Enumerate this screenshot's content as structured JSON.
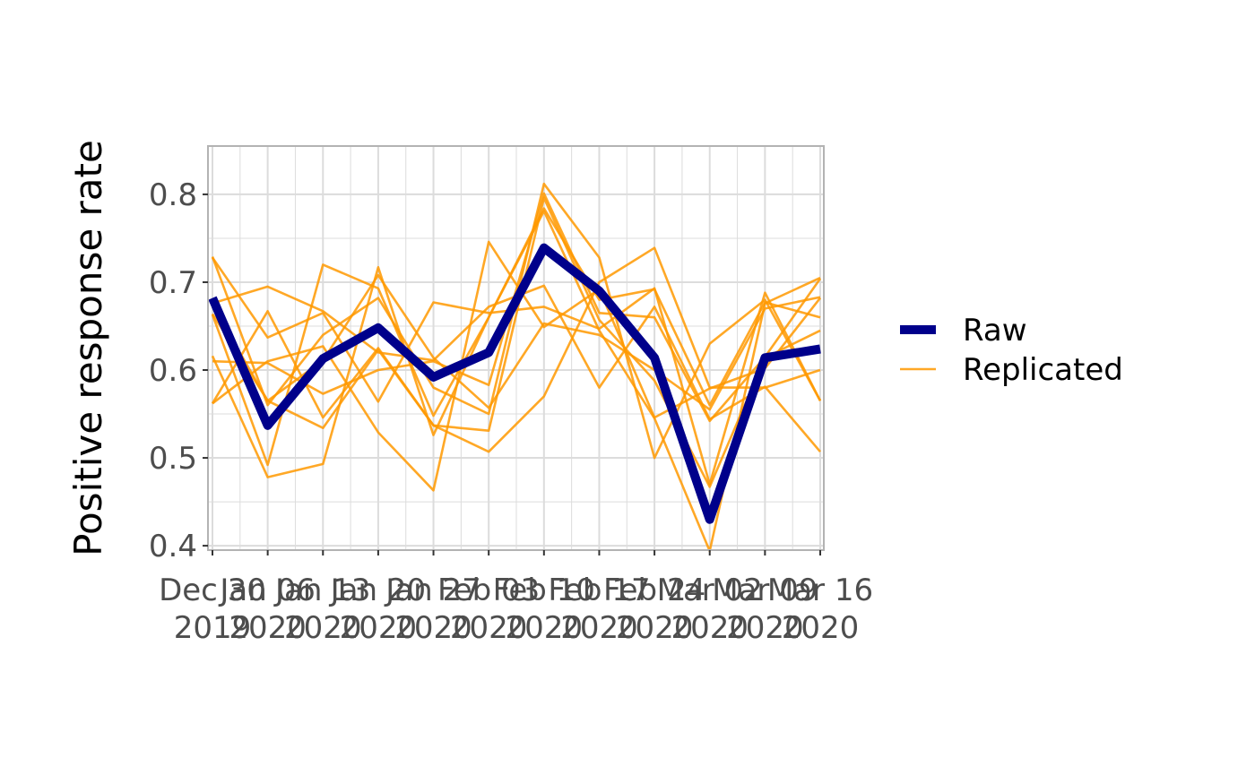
{
  "chart_data": {
    "type": "line",
    "title": "",
    "xlabel": "",
    "ylabel": "Positive response rate",
    "ylim": [
      0.395,
      0.855
    ],
    "yticks": [
      0.4,
      0.5,
      0.6,
      0.7,
      0.8
    ],
    "ytick_labels": [
      "0.4",
      "0.5",
      "0.6",
      "0.7",
      "0.8"
    ],
    "x": [
      "2019-12-30",
      "2020-01-06",
      "2020-01-13",
      "2020-01-20",
      "2020-01-27",
      "2020-02-03",
      "2020-02-10",
      "2020-02-17",
      "2020-02-24",
      "2020-03-02",
      "2020-03-09",
      "2020-03-16"
    ],
    "x_tick_labels": [
      [
        "Dec 30",
        "2019"
      ],
      [
        "Jan 06",
        "2020"
      ],
      [
        "Jan 13",
        "2020"
      ],
      [
        "Jan 20",
        "2020"
      ],
      [
        "Jan 27",
        "2020"
      ],
      [
        "Feb 03",
        "2020"
      ],
      [
        "Feb 10",
        "2020"
      ],
      [
        "Feb 17",
        "2020"
      ],
      [
        "Feb 24",
        "2020"
      ],
      [
        "Mar 02",
        "2020"
      ],
      [
        "Mar 09",
        "2020"
      ],
      [
        "Mar 16",
        "2020"
      ]
    ],
    "grid": true,
    "legend_position": "right",
    "colors": {
      "raw": "#00008b",
      "replicated": "#ff9900",
      "grid": "#dcdcdc",
      "panel_border": "#b3b3b3"
    },
    "series": [
      {
        "name": "Raw",
        "role": "raw",
        "values": [
          0.682,
          0.537,
          0.613,
          0.648,
          0.592,
          0.62,
          0.739,
          0.69,
          0.614,
          0.43,
          0.614,
          0.624
        ]
      },
      {
        "name": "Replicated",
        "role": "replicated",
        "values": [
          0.729,
          0.56,
          0.64,
          0.682,
          0.58,
          0.55,
          0.812,
          0.728,
          0.5,
          0.63,
          0.68,
          0.565
        ]
      },
      {
        "role": "replicated",
        "values": [
          0.663,
          0.492,
          0.72,
          0.693,
          0.548,
          0.66,
          0.784,
          0.68,
          0.692,
          0.56,
          0.677,
          0.66
        ]
      },
      {
        "role": "replicated",
        "values": [
          0.562,
          0.667,
          0.546,
          0.625,
          0.537,
          0.507,
          0.57,
          0.7,
          0.739,
          0.58,
          0.58,
          0.6
        ]
      },
      {
        "role": "replicated",
        "values": [
          0.616,
          0.478,
          0.493,
          0.717,
          0.526,
          0.66,
          0.781,
          0.645,
          0.545,
          0.394,
          0.676,
          0.705
        ]
      },
      {
        "role": "replicated",
        "values": [
          0.676,
          0.695,
          0.667,
          0.62,
          0.611,
          0.672,
          0.696,
          0.58,
          0.672,
          0.544,
          0.581,
          0.507
        ]
      },
      {
        "role": "replicated",
        "values": [
          0.728,
          0.637,
          0.665,
          0.564,
          0.677,
          0.665,
          0.672,
          0.647,
          0.693,
          0.47,
          0.688,
          0.565
        ]
      },
      {
        "role": "replicated",
        "values": [
          0.61,
          0.608,
          0.573,
          0.6,
          0.61,
          0.583,
          0.801,
          0.665,
          0.66,
          0.542,
          0.615,
          0.704
        ]
      },
      {
        "role": "replicated",
        "values": [
          0.664,
          0.565,
          0.534,
          0.623,
          0.537,
          0.531,
          0.796,
          0.657,
          0.588,
          0.467,
          0.614,
          0.645
        ]
      },
      {
        "role": "replicated",
        "values": [
          0.562,
          0.61,
          0.627,
          0.529,
          0.463,
          0.746,
          0.649,
          0.692,
          0.546,
          0.579,
          0.602,
          0.682
        ]
      },
      {
        "role": "replicated",
        "values": [
          0.674,
          0.565,
          0.611,
          0.708,
          0.614,
          0.557,
          0.653,
          0.64,
          0.6,
          0.555,
          0.67,
          0.683
        ]
      }
    ],
    "legend": [
      {
        "label": "Raw",
        "role": "raw"
      },
      {
        "label": "Replicated",
        "role": "replicated"
      }
    ]
  }
}
